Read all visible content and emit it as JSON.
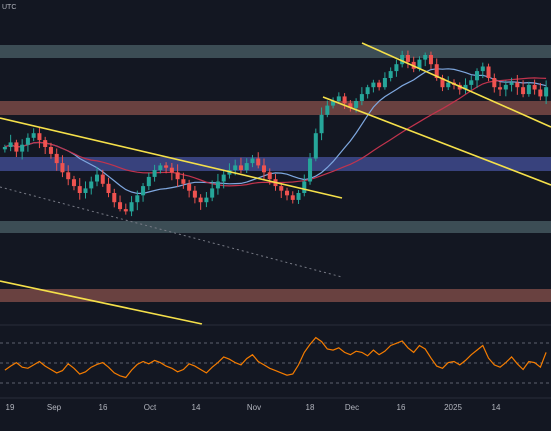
{
  "header": {
    "symbol_fragment": "UTC"
  },
  "chart_data": [
    {
      "type": "candlestick",
      "title": "",
      "x_tick_labels": [
        "19",
        "Sep",
        "16",
        "Oct",
        "14",
        "Nov",
        "18",
        "Dec",
        "16",
        "2025",
        "14"
      ],
      "y_tick_labels": [],
      "grid": false,
      "legend": "none",
      "colors": {
        "up": "#26a69a",
        "down": "#ef5350",
        "ma_short": "#7fa8e0",
        "ma_long": "#c2334d",
        "trendline": "#f5e04a",
        "band_gray": "#5f7a80",
        "band_brown": "#b0655a",
        "band_blue": "#5866c8",
        "background": "#131722"
      },
      "price_series": {
        "name": "",
        "close_normalized": [
          0.6,
          0.62,
          0.58,
          0.61,
          0.64,
          0.66,
          0.63,
          0.6,
          0.57,
          0.53,
          0.49,
          0.46,
          0.43,
          0.4,
          0.42,
          0.45,
          0.48,
          0.44,
          0.4,
          0.36,
          0.33,
          0.32,
          0.36,
          0.39,
          0.43,
          0.47,
          0.5,
          0.52,
          0.51,
          0.49,
          0.46,
          0.44,
          0.41,
          0.38,
          0.36,
          0.38,
          0.42,
          0.45,
          0.48,
          0.5,
          0.52,
          0.5,
          0.53,
          0.55,
          0.52,
          0.49,
          0.46,
          0.43,
          0.41,
          0.39,
          0.37,
          0.4,
          0.45,
          0.55,
          0.66,
          0.74,
          0.78,
          0.8,
          0.82,
          0.79,
          0.77,
          0.8,
          0.83,
          0.86,
          0.88,
          0.86,
          0.9,
          0.93,
          0.96,
          1.0,
          0.97,
          0.94,
          0.98,
          1.0,
          0.96,
          0.9,
          0.86,
          0.88,
          0.87,
          0.85,
          0.87,
          0.89,
          0.93,
          0.95,
          0.9,
          0.86,
          0.85,
          0.87,
          0.88,
          0.86,
          0.83,
          0.87,
          0.85,
          0.82,
          0.86
        ]
      },
      "moving_averages": [
        {
          "name": "",
          "color": "#7fa8e0"
        },
        {
          "name": "",
          "color": "#c2334d"
        }
      ]
    },
    {
      "type": "line",
      "title": "",
      "series": [
        {
          "name": "",
          "values": [
            0.35,
            0.42,
            0.48,
            0.4,
            0.38,
            0.44,
            0.5,
            0.42,
            0.36,
            0.3,
            0.34,
            0.46,
            0.38,
            0.28,
            0.32,
            0.4,
            0.45,
            0.48,
            0.4,
            0.3,
            0.25,
            0.22,
            0.35,
            0.45,
            0.5,
            0.46,
            0.52,
            0.48,
            0.42,
            0.38,
            0.32,
            0.36,
            0.46,
            0.42,
            0.36,
            0.3,
            0.4,
            0.48,
            0.58,
            0.54,
            0.48,
            0.44,
            0.55,
            0.62,
            0.5,
            0.44,
            0.38,
            0.34,
            0.3,
            0.26,
            0.28,
            0.44,
            0.66,
            0.8,
            0.92,
            0.85,
            0.72,
            0.7,
            0.74,
            0.66,
            0.62,
            0.68,
            0.66,
            0.6,
            0.7,
            0.62,
            0.68,
            0.78,
            0.82,
            0.86,
            0.74,
            0.66,
            0.78,
            0.72,
            0.56,
            0.42,
            0.38,
            0.48,
            0.5,
            0.44,
            0.52,
            0.62,
            0.7,
            0.78,
            0.56,
            0.44,
            0.4,
            0.48,
            0.58,
            0.46,
            0.36,
            0.5,
            0.48,
            0.4,
            0.66
          ]
        }
      ],
      "reference_levels_visible": 3
    }
  ]
}
